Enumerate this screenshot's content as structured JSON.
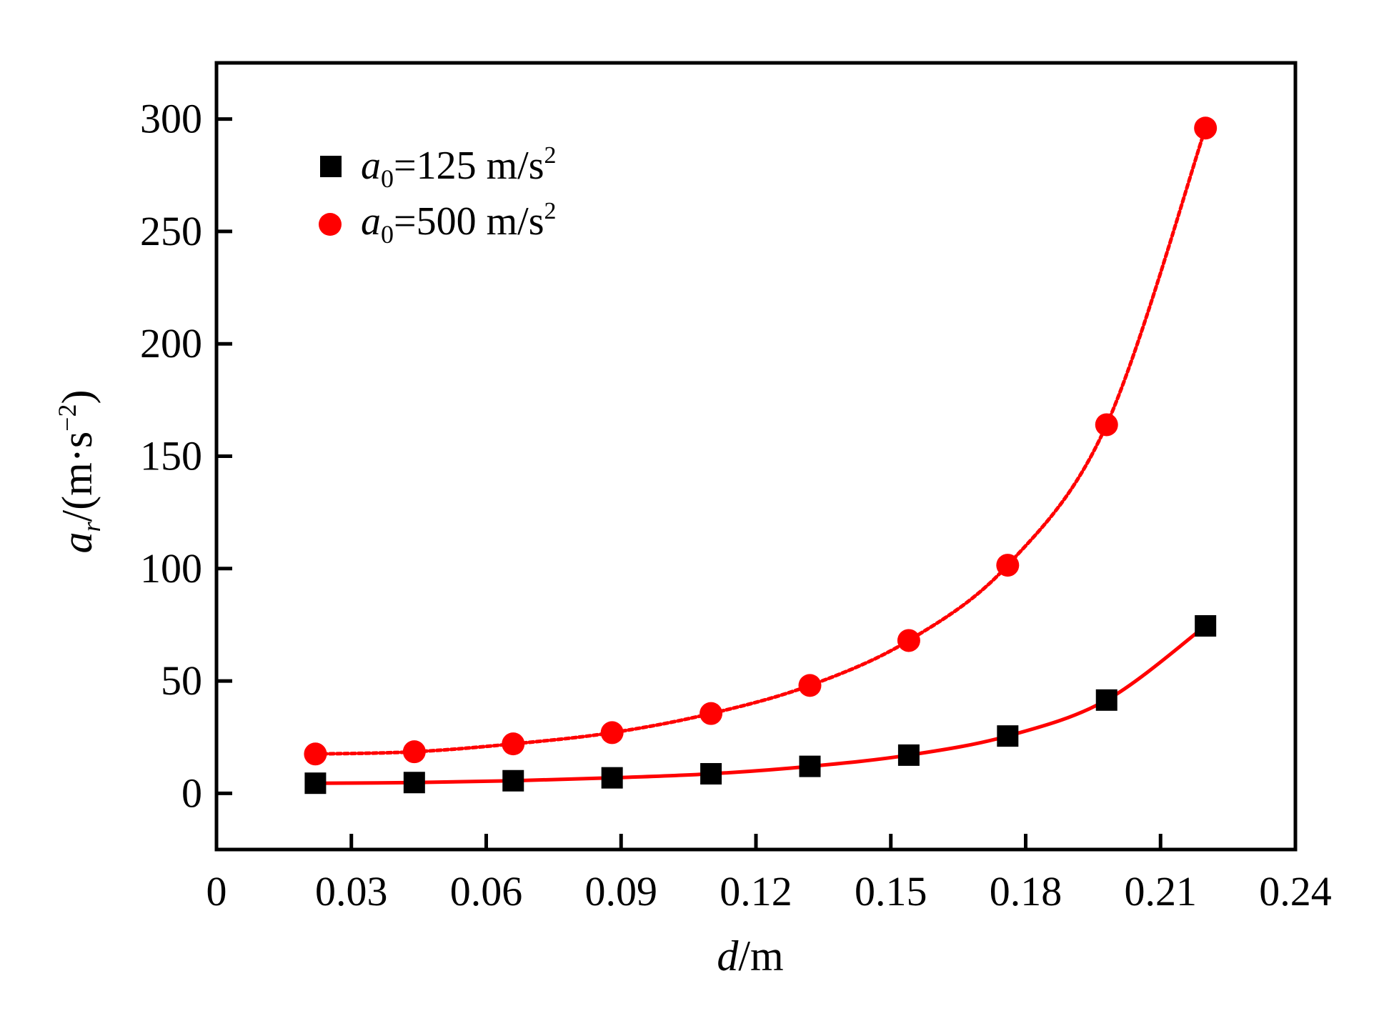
{
  "chart_data": {
    "type": "scatter",
    "xlabel": {
      "var": "d",
      "unit": "/m"
    },
    "ylabel": {
      "var": "a",
      "sub": "r",
      "unit": "/(m·s",
      "exp": "−2",
      "close": ")"
    },
    "xlim": [
      0,
      0.24
    ],
    "ylim": [
      -25,
      325
    ],
    "x_ticks": [
      0,
      0.03,
      0.06,
      0.09,
      0.12,
      0.15,
      0.18,
      0.21,
      0.24
    ],
    "x_tick_labels": [
      "0",
      "0.03",
      "0.06",
      "0.09",
      "0.12",
      "0.15",
      "0.18",
      "0.21",
      "0.24"
    ],
    "y_ticks": [
      0,
      50,
      100,
      150,
      200,
      250,
      300
    ],
    "y_tick_labels": [
      "0",
      "50",
      "100",
      "150",
      "200",
      "250",
      "300"
    ],
    "grid": false,
    "legend_position": "top-left",
    "series": [
      {
        "name": {
          "var": "a",
          "sub": "0",
          "text": "=125 m/s",
          "sup": "2"
        },
        "marker": "square",
        "color": "#000000",
        "fit_color": "#ff0000",
        "fit_style": "solid",
        "x": [
          0.022,
          0.044,
          0.066,
          0.088,
          0.11,
          0.132,
          0.154,
          0.176,
          0.198,
          0.22
        ],
        "y": [
          4.5,
          4.8,
          5.6,
          6.9,
          8.7,
          12.0,
          17.0,
          25.5,
          41.5,
          74.5
        ]
      },
      {
        "name": {
          "var": "a",
          "sub": "0",
          "text": "=500 m/s",
          "sup": "2"
        },
        "marker": "circle",
        "color": "#ff0000",
        "fit_color": "#ff0000",
        "fit_style": "dotted",
        "x": [
          0.022,
          0.044,
          0.066,
          0.088,
          0.11,
          0.132,
          0.154,
          0.176,
          0.198,
          0.22
        ],
        "y": [
          17.5,
          18.5,
          22.0,
          27.0,
          35.5,
          48.0,
          68.0,
          101.5,
          164.0,
          296.0
        ]
      }
    ]
  }
}
